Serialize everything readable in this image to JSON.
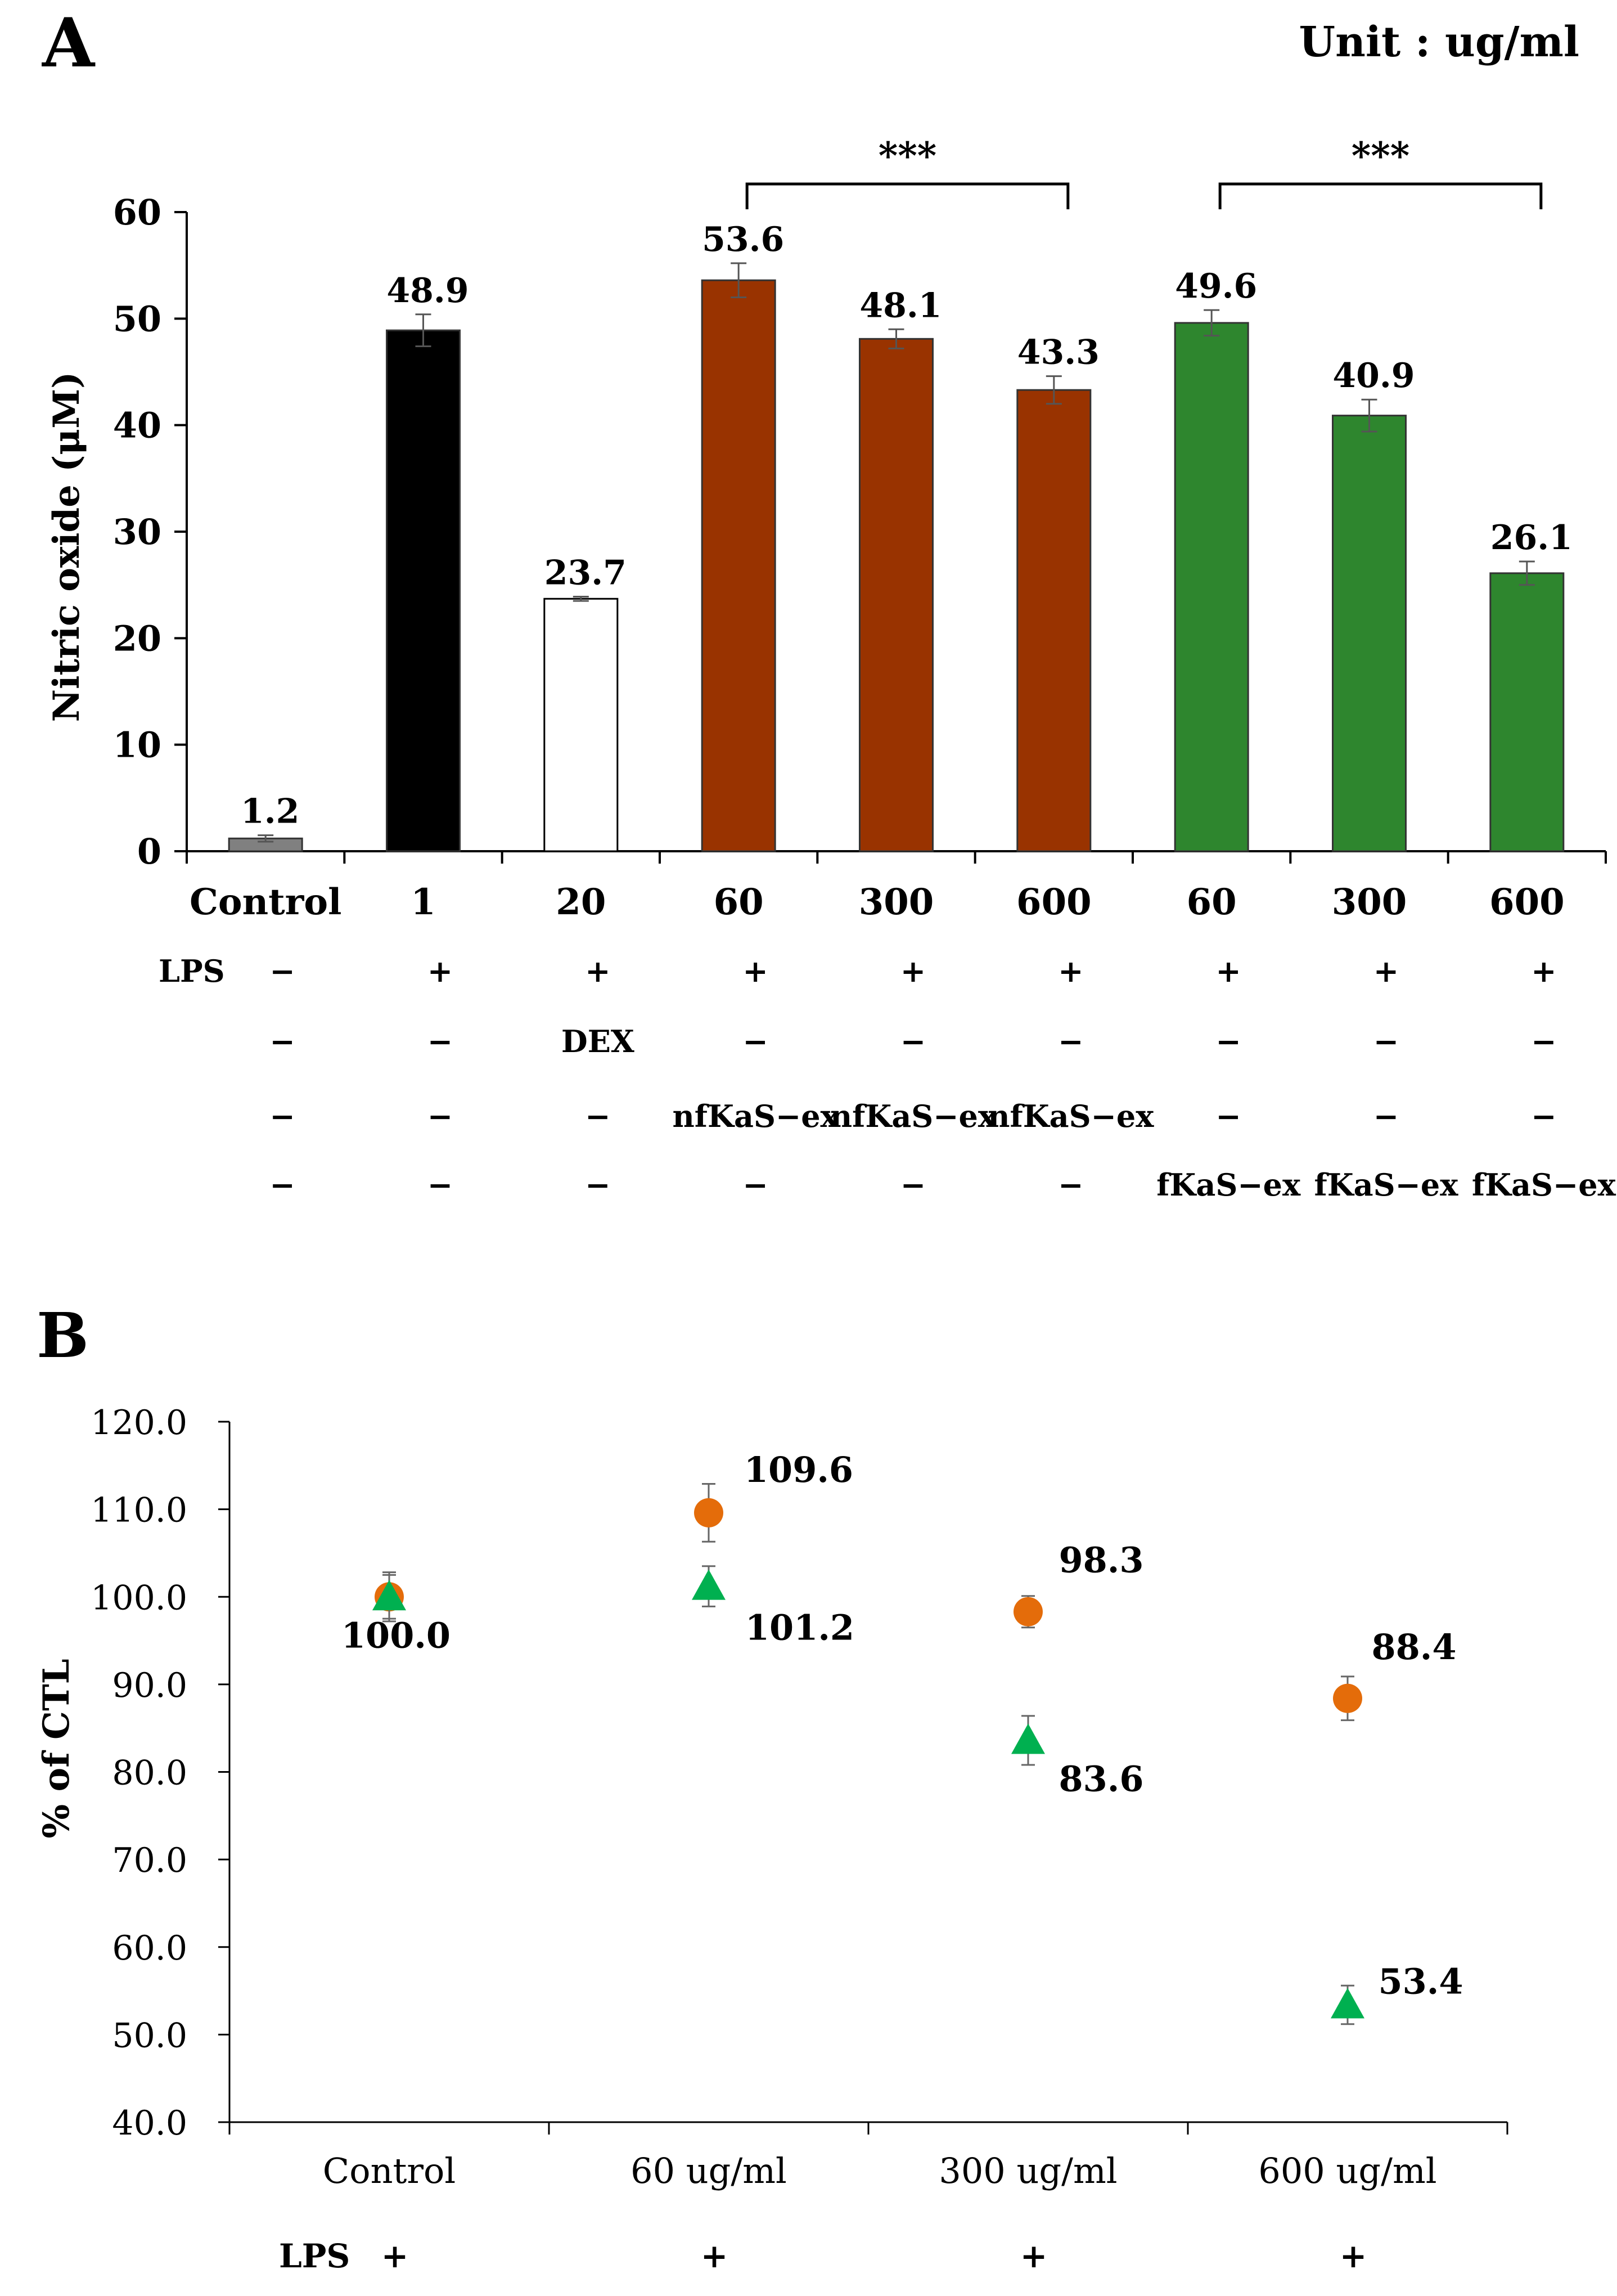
{
  "chart_data": [
    {
      "panel": "A",
      "type": "bar",
      "unit_note": "Unit : ug/ml",
      "ylabel": "Nitric oxide (μM)",
      "ylim": [
        0,
        60
      ],
      "yticks": [
        0,
        10,
        20,
        30,
        40,
        50,
        60
      ],
      "categories": [
        "Control",
        "1",
        "20",
        "60",
        "300",
        "600",
        "60",
        "300",
        "600"
      ],
      "values": [
        1.2,
        48.9,
        23.7,
        53.6,
        48.1,
        43.3,
        49.6,
        40.9,
        26.1
      ],
      "errors": [
        0.3,
        1.5,
        0.2,
        1.6,
        0.9,
        1.3,
        1.2,
        1.5,
        1.1
      ],
      "bar_colors": [
        "#808080",
        "#000000",
        "#ffffff",
        "#993300",
        "#993300",
        "#993300",
        "#2e862e",
        "#2e862e",
        "#2e862e"
      ],
      "data_labels": [
        "1.2",
        "48.9",
        "23.7",
        "53.6",
        "48.1",
        "43.3",
        "49.6",
        "40.9",
        "26.1"
      ],
      "significance": [
        {
          "from": 3,
          "to": 5,
          "label": "***"
        },
        {
          "from": 6,
          "to": 8,
          "label": "***"
        }
      ],
      "condition_rows": [
        {
          "label": "LPS",
          "cells": [
            "−",
            "+",
            "+",
            "+",
            "+",
            "+",
            "+",
            "+",
            "+"
          ]
        },
        {
          "label": "",
          "cells": [
            "−",
            "−",
            "DEX",
            "−",
            "−",
            "−",
            "−",
            "−",
            "−"
          ]
        },
        {
          "label": "",
          "cells": [
            "−",
            "−",
            "−",
            "nfKaS−ex",
            "nfKaS−ex",
            "nfKaS−ex",
            "−",
            "−",
            "−"
          ]
        },
        {
          "label": "",
          "cells": [
            "−",
            "−",
            "−",
            "−",
            "−",
            "−",
            "fKaS−ex",
            "fKaS−ex",
            "fKaS−ex"
          ]
        }
      ]
    },
    {
      "panel": "B",
      "type": "scatter",
      "ylabel": "% of CTL",
      "ylim": [
        40,
        120
      ],
      "yticks": [
        "40.0",
        "50.0",
        "60.0",
        "70.0",
        "80.0",
        "90.0",
        "100.0",
        "110.0",
        "120.0"
      ],
      "categories": [
        "Control",
        "60 ug/ml",
        "300 ug/ml",
        "600 ug/ml"
      ],
      "series": [
        {
          "marker": "circle",
          "color": "#e46c0a",
          "values": [
            100.0,
            109.6,
            98.3,
            88.4
          ],
          "errors": [
            2.8,
            3.3,
            1.8,
            2.5
          ],
          "labels": [
            "100.0",
            "109.6",
            "98.3",
            "88.4"
          ]
        },
        {
          "marker": "triangle",
          "color": "#00b050",
          "values": [
            100.0,
            101.2,
            83.6,
            53.4
          ],
          "errors": [
            2.5,
            2.3,
            2.8,
            2.2
          ],
          "labels": [
            "",
            "101.2",
            "83.6",
            "53.4"
          ]
        }
      ],
      "condition_rows": [
        {
          "label": "LPS",
          "cells": [
            "+",
            "+",
            "+",
            "+"
          ]
        }
      ]
    }
  ]
}
